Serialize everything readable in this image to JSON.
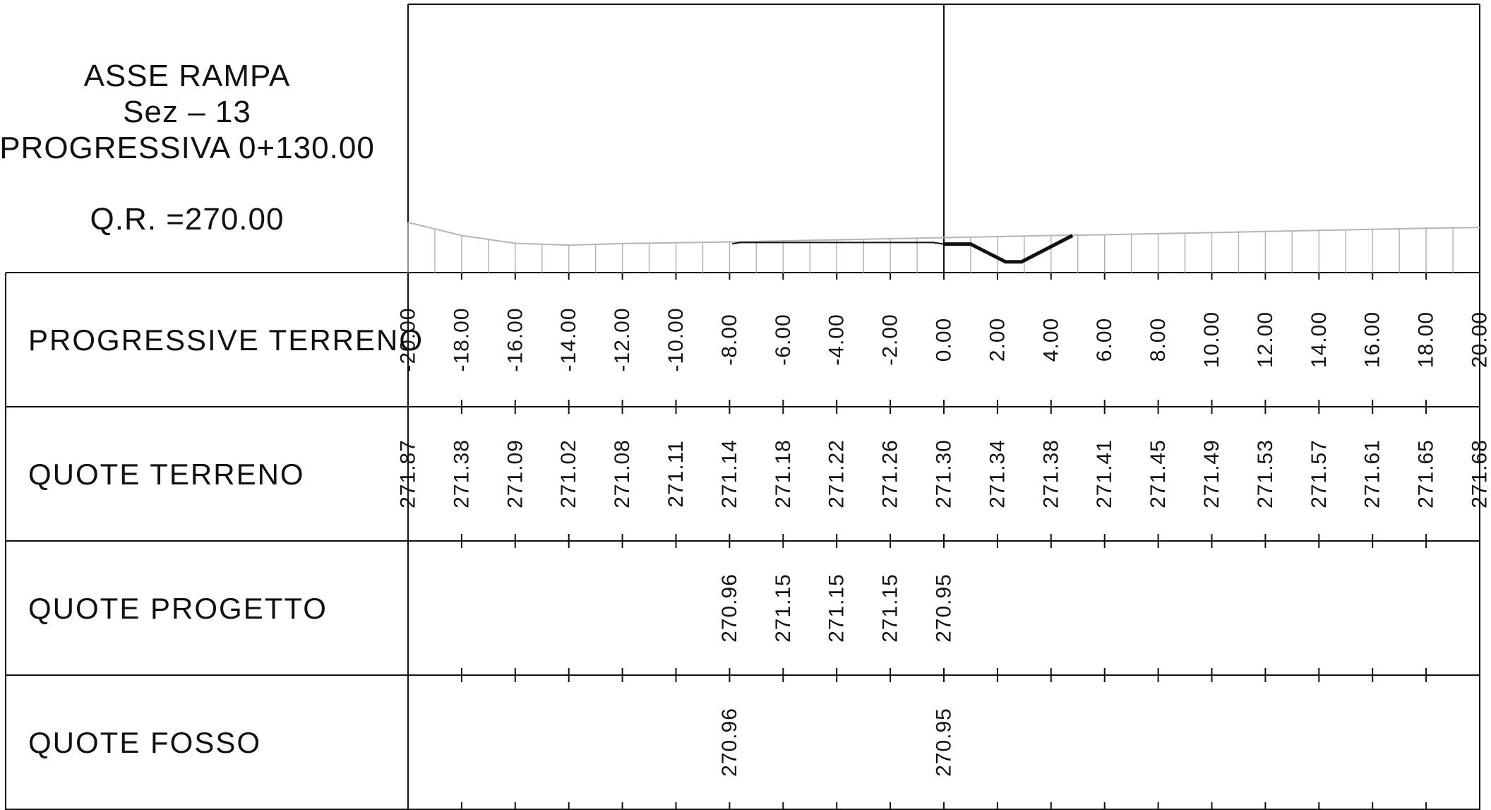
{
  "title": {
    "line1": "ASSE RAMPA",
    "line2": "Sez – 13",
    "line3": "PROGRESSIVA 0+130.00",
    "line4": "Q.R. =270.00"
  },
  "rows": {
    "progressive_label": "PROGRESSIVE TERRENO",
    "ground_label": "QUOTE TERRENO",
    "project_label": "QUOTE PROGETTO",
    "ditch_label": "QUOTE FOSSO"
  },
  "stations": [
    "-20.00",
    "-18.00",
    "-16.00",
    "-14.00",
    "-12.00",
    "-10.00",
    "-8.00",
    "-6.00",
    "-4.00",
    "-2.00",
    "0.00",
    "2.00",
    "4.00",
    "6.00",
    "8.00",
    "10.00",
    "12.00",
    "14.00",
    "16.00",
    "18.00",
    "20.00"
  ],
  "ground_elevations": [
    "271.87",
    "271.38",
    "271.09",
    "271.02",
    "271.08",
    "271.11",
    "271.14",
    "271.18",
    "271.22",
    "271.26",
    "271.30",
    "271.34",
    "271.38",
    "271.41",
    "271.45",
    "271.49",
    "271.53",
    "271.57",
    "271.61",
    "271.65",
    "271.68"
  ],
  "project": {
    "offsets": [
      -8,
      -6,
      -4,
      -2,
      0
    ],
    "values": [
      "270.96",
      "271.15",
      "271.15",
      "271.15",
      "270.95"
    ]
  },
  "ditch": {
    "offsets": [
      -8,
      0
    ],
    "values": [
      "270.96",
      "270.95"
    ]
  },
  "profile": {
    "ground_line_color": "#b5b5b5",
    "design_line_color": "#111111",
    "road_profile": [
      [
        -7.9,
        271.07
      ],
      [
        -7.6,
        271.12
      ],
      [
        -0.4,
        271.12
      ],
      [
        0,
        271.06
      ]
    ],
    "ditch_profile": [
      [
        0,
        271.06
      ],
      [
        1.0,
        271.06
      ],
      [
        2.3,
        270.4
      ],
      [
        2.9,
        270.4
      ],
      [
        4.8,
        271.38
      ]
    ]
  }
}
